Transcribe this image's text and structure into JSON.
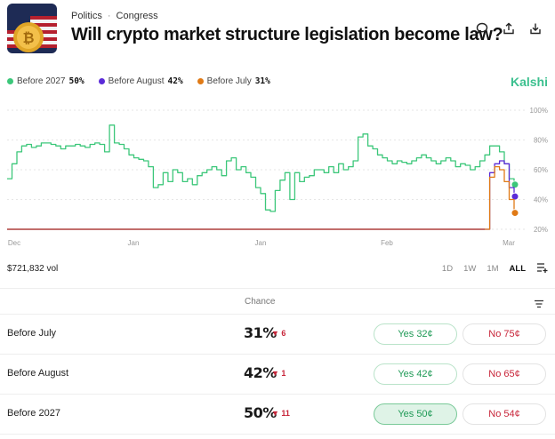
{
  "header": {
    "category": "Politics",
    "subcategory": "Congress",
    "title": "Will crypto market structure legislation become law?",
    "icons": [
      "comment-icon",
      "share-icon",
      "download-icon"
    ]
  },
  "legend": [
    {
      "label": "Before 2027",
      "value": "50%",
      "color": "#3cc77a"
    },
    {
      "label": "Before August",
      "value": "42%",
      "color": "#5b2bd8"
    },
    {
      "label": "Before July",
      "value": "31%",
      "color": "#e07a16"
    }
  ],
  "brand": "Kalshi",
  "volume": "$721,832 vol",
  "ranges": [
    "1D",
    "1W",
    "1M",
    "ALL"
  ],
  "active_range": "ALL",
  "table": {
    "chance_header": "Chance",
    "rows": [
      {
        "name": "Before July",
        "chance": "31%",
        "change": "▼ 6",
        "yes": "Yes 32¢",
        "no": "No 75¢",
        "selected": false
      },
      {
        "name": "Before August",
        "chance": "42%",
        "change": "▼ 1",
        "yes": "Yes 42¢",
        "no": "No 65¢",
        "selected": false
      },
      {
        "name": "Before 2027",
        "chance": "50%",
        "change": "▼ 11",
        "yes": "Yes 50¢",
        "no": "No 54¢",
        "selected": true
      }
    ]
  },
  "chart_data": {
    "type": "line",
    "x_ticks": [
      "Dec",
      "Jan",
      "Jan",
      "Feb",
      "Mar"
    ],
    "y_ticks": [
      "100%",
      "80%",
      "60%",
      "40%",
      "20%"
    ],
    "ylim": [
      20,
      100
    ],
    "grid": true,
    "series": [
      {
        "name": "Before 2027",
        "color": "#3cc77a",
        "values": [
          54,
          64,
          72,
          76,
          77,
          75,
          76,
          78,
          78,
          77,
          76,
          74,
          76,
          76,
          77,
          76,
          75,
          77,
          78,
          77,
          72,
          90,
          78,
          77,
          74,
          70,
          68,
          67,
          66,
          62,
          48,
          50,
          58,
          52,
          60,
          58,
          52,
          54,
          50,
          56,
          58,
          60,
          62,
          60,
          56,
          66,
          68,
          60,
          62,
          58,
          55,
          48,
          44,
          33,
          32,
          46,
          53,
          58,
          40,
          58,
          52,
          55,
          56,
          60,
          60,
          58,
          62,
          58,
          64,
          60,
          62,
          66,
          82,
          84,
          76,
          74,
          70,
          68,
          66,
          64,
          66,
          65,
          64,
          66,
          68,
          70,
          68,
          66,
          64,
          66,
          68,
          66,
          62,
          64,
          63,
          60,
          62,
          66,
          70,
          76,
          76,
          72,
          64,
          54,
          50
        ]
      },
      {
        "name": "Before August",
        "color": "#5b2bd8",
        "values": [
          20,
          20,
          20,
          20,
          20,
          20,
          20,
          20,
          20,
          20,
          20,
          20,
          20,
          20,
          20,
          20,
          20,
          20,
          20,
          20,
          20,
          20,
          20,
          20,
          20,
          20,
          20,
          20,
          20,
          20,
          20,
          20,
          20,
          20,
          20,
          20,
          20,
          20,
          20,
          20,
          20,
          20,
          20,
          20,
          20,
          20,
          20,
          20,
          20,
          20,
          20,
          20,
          20,
          20,
          20,
          20,
          20,
          20,
          20,
          20,
          20,
          20,
          20,
          20,
          20,
          20,
          20,
          20,
          20,
          20,
          20,
          20,
          20,
          20,
          20,
          20,
          20,
          20,
          20,
          20,
          20,
          20,
          20,
          20,
          20,
          20,
          20,
          20,
          20,
          20,
          20,
          20,
          20,
          20,
          20,
          20,
          20,
          20,
          20,
          58,
          64,
          66,
          64,
          48,
          42
        ]
      },
      {
        "name": "Before July",
        "color": "#e07a16",
        "values": [
          20,
          20,
          20,
          20,
          20,
          20,
          20,
          20,
          20,
          20,
          20,
          20,
          20,
          20,
          20,
          20,
          20,
          20,
          20,
          20,
          20,
          20,
          20,
          20,
          20,
          20,
          20,
          20,
          20,
          20,
          20,
          20,
          20,
          20,
          20,
          20,
          20,
          20,
          20,
          20,
          20,
          20,
          20,
          20,
          20,
          20,
          20,
          20,
          20,
          20,
          20,
          20,
          20,
          20,
          20,
          20,
          20,
          20,
          20,
          20,
          20,
          20,
          20,
          20,
          20,
          20,
          20,
          20,
          20,
          20,
          20,
          20,
          20,
          20,
          20,
          20,
          20,
          20,
          20,
          20,
          20,
          20,
          20,
          20,
          20,
          20,
          20,
          20,
          20,
          20,
          20,
          20,
          20,
          20,
          20,
          20,
          20,
          20,
          20,
          55,
          62,
          60,
          52,
          40,
          31
        ]
      }
    ]
  }
}
